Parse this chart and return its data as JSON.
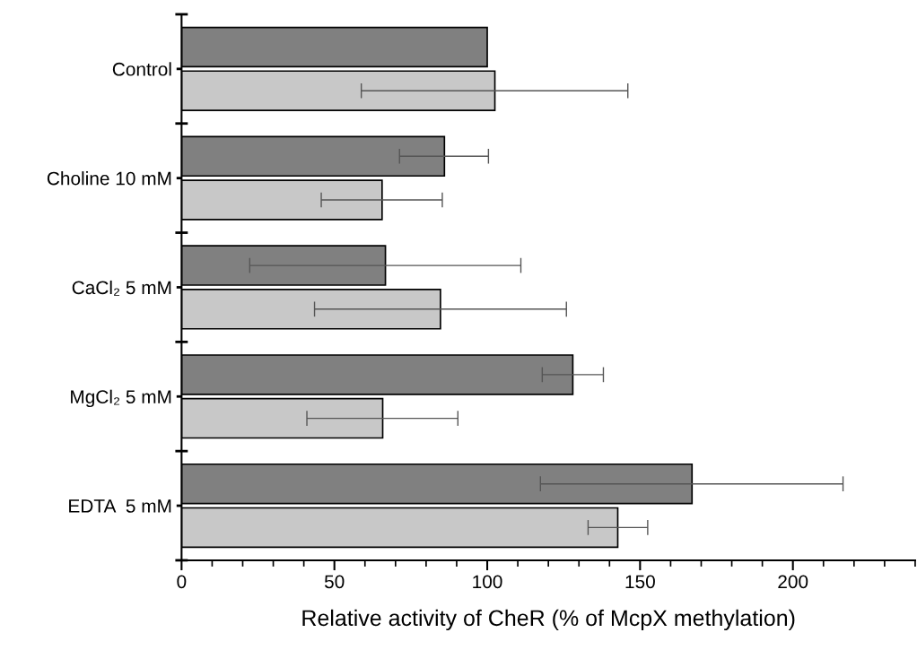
{
  "chart_data": {
    "type": "bar",
    "orientation": "horizontal",
    "xlabel": "Relative activity of CheR (% of McpX methylation)",
    "categories": [
      "Control",
      "Choline 10 mM",
      "CaCl₂ 5 mM",
      "MgCl₂ 5 mM",
      "EDTA  5 mM"
    ],
    "series": [
      {
        "color": "#808080",
        "values": [
          100,
          86,
          66.7,
          128,
          167
        ],
        "errors": [
          null,
          [
            71.3,
            100.4
          ],
          [
            22.3,
            111
          ],
          [
            118,
            138
          ],
          [
            117.4,
            216.4
          ]
        ]
      },
      {
        "color": "#c8c8c8",
        "values": [
          102.5,
          65.6,
          84.7,
          65.8,
          142.7
        ],
        "errors": [
          [
            58.8,
            146
          ],
          [
            45.7,
            85.3
          ],
          [
            43.5,
            125.9
          ],
          [
            41,
            90.4
          ],
          [
            133,
            152.5
          ]
        ]
      }
    ],
    "xlim": [
      0,
      240
    ],
    "xticks": [
      0,
      50,
      100,
      150,
      200
    ],
    "grid": false,
    "legend": false
  }
}
